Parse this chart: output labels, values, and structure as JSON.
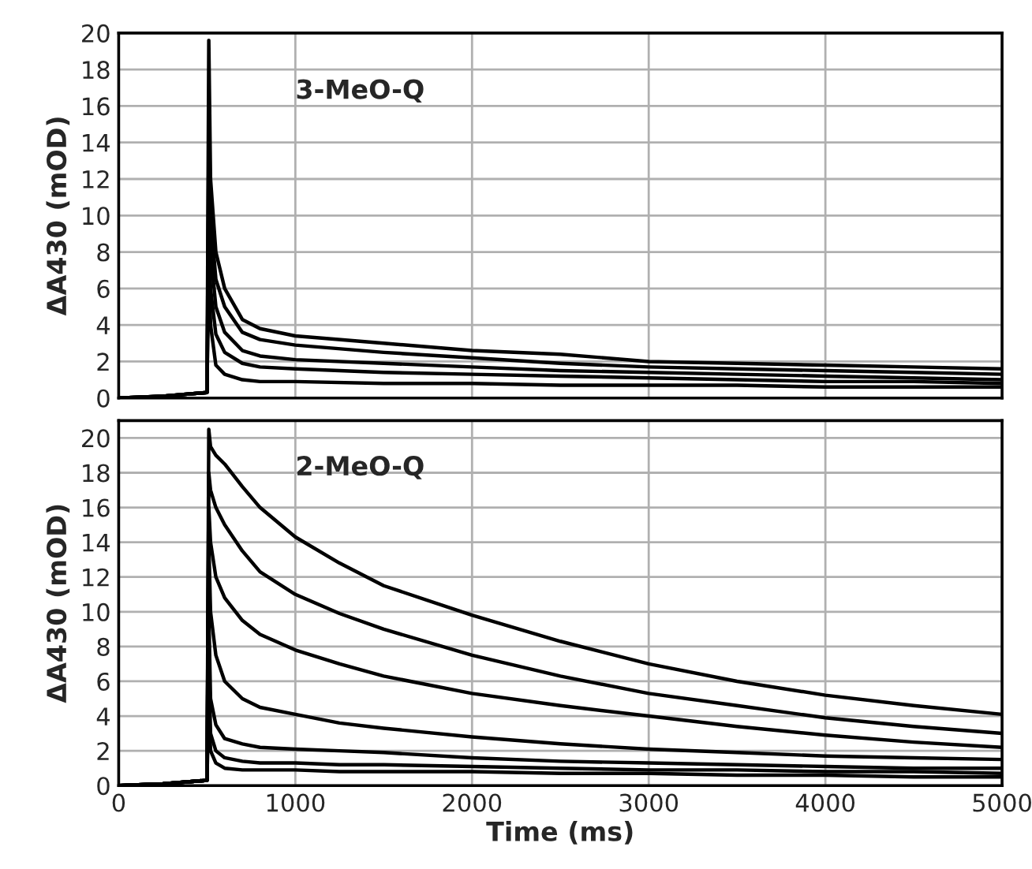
{
  "chart_data": [
    {
      "type": "line",
      "ylabel": "ΔA430 (mOD)",
      "annotations": [
        "3-MeO-Q"
      ],
      "x": [
        0,
        250,
        500,
        510,
        520,
        550,
        600,
        700,
        800,
        1000,
        1500,
        2000,
        2500,
        3000,
        3500,
        4000,
        4500,
        5000
      ],
      "xlim": [
        0,
        5000
      ],
      "xticks": [
        0,
        1000,
        2000,
        3000,
        4000,
        5000
      ],
      "ylim": [
        0,
        20
      ],
      "yticks": [
        0,
        2,
        4,
        6,
        8,
        10,
        12,
        14,
        16,
        18,
        20
      ],
      "grid": true,
      "tick_labels": "y",
      "marker": "none",
      "line_style": "solid",
      "series": [
        {
          "color": "#000000",
          "values": [
            0,
            0.1,
            0.3,
            19.6,
            12,
            8,
            6,
            4.3,
            3.8,
            3.4,
            3.0,
            2.6,
            2.4,
            2.0,
            1.9,
            1.8,
            1.7,
            1.6
          ]
        },
        {
          "color": "#000000",
          "values": [
            0,
            0.1,
            0.3,
            15,
            10,
            6.5,
            5,
            3.6,
            3.2,
            2.9,
            2.5,
            2.2,
            1.9,
            1.7,
            1.6,
            1.5,
            1.4,
            1.3
          ]
        },
        {
          "color": "#000000",
          "values": [
            0,
            0.1,
            0.3,
            12,
            8,
            5,
            3.6,
            2.6,
            2.3,
            2.1,
            1.9,
            1.7,
            1.5,
            1.4,
            1.3,
            1.2,
            1.1,
            1.0
          ]
        },
        {
          "color": "#000000",
          "values": [
            0,
            0.1,
            0.3,
            10,
            6,
            3.5,
            2.5,
            1.9,
            1.7,
            1.6,
            1.4,
            1.3,
            1.2,
            1.1,
            1.0,
            0.9,
            0.9,
            0.8
          ]
        },
        {
          "color": "#000000",
          "values": [
            0,
            0.1,
            0.3,
            8,
            4,
            1.8,
            1.3,
            1.0,
            0.9,
            0.9,
            0.8,
            0.8,
            0.7,
            0.7,
            0.7,
            0.6,
            0.6,
            0.6
          ]
        }
      ]
    },
    {
      "type": "line",
      "ylabel": "ΔA430 (mOD)",
      "xlabel": "Time (ms)",
      "annotations": [
        "2-MeO-Q"
      ],
      "x": [
        0,
        250,
        500,
        510,
        520,
        550,
        600,
        700,
        800,
        1000,
        1250,
        1500,
        2000,
        2500,
        3000,
        3500,
        4000,
        4500,
        5000
      ],
      "xlim": [
        0,
        5000
      ],
      "xticks": [
        0,
        1000,
        2000,
        3000,
        4000,
        5000
      ],
      "ylim": [
        0,
        21
      ],
      "yticks": [
        0,
        2,
        4,
        6,
        8,
        10,
        12,
        14,
        16,
        18,
        20
      ],
      "grid": true,
      "marker": "none",
      "line_style": "solid",
      "series": [
        {
          "color": "#000000",
          "values": [
            0,
            0.1,
            0.3,
            20.5,
            19.5,
            19,
            18.5,
            17.2,
            16,
            14.3,
            12.8,
            11.5,
            9.8,
            8.3,
            7.0,
            6.0,
            5.2,
            4.6,
            4.1
          ]
        },
        {
          "color": "#000000",
          "values": [
            0,
            0.1,
            0.3,
            18,
            17,
            16,
            15,
            13.5,
            12.3,
            11,
            9.9,
            9.0,
            7.5,
            6.3,
            5.3,
            4.6,
            3.9,
            3.4,
            3.0
          ]
        },
        {
          "color": "#000000",
          "values": [
            0,
            0.1,
            0.3,
            16,
            14,
            12,
            10.8,
            9.5,
            8.7,
            7.8,
            7.0,
            6.3,
            5.3,
            4.6,
            4.0,
            3.4,
            2.9,
            2.5,
            2.2
          ]
        },
        {
          "color": "#000000",
          "values": [
            0,
            0.1,
            0.3,
            14,
            10,
            7.5,
            6,
            5,
            4.5,
            4.1,
            3.6,
            3.3,
            2.8,
            2.4,
            2.1,
            1.9,
            1.7,
            1.6,
            1.5
          ]
        },
        {
          "color": "#000000",
          "values": [
            0,
            0.1,
            0.3,
            10,
            5,
            3.5,
            2.7,
            2.4,
            2.2,
            2.1,
            2.0,
            1.9,
            1.6,
            1.4,
            1.3,
            1.2,
            1.1,
            1.0,
            1.0
          ]
        },
        {
          "color": "#000000",
          "values": [
            0,
            0.1,
            0.3,
            7,
            3,
            2,
            1.6,
            1.4,
            1.3,
            1.3,
            1.2,
            1.2,
            1.1,
            1.0,
            0.9,
            0.9,
            0.8,
            0.8,
            0.7
          ]
        },
        {
          "color": "#000000",
          "values": [
            0,
            0.1,
            0.3,
            5,
            2,
            1.3,
            1.0,
            0.9,
            0.9,
            0.9,
            0.8,
            0.8,
            0.8,
            0.7,
            0.7,
            0.6,
            0.6,
            0.5,
            0.5
          ]
        }
      ]
    }
  ]
}
